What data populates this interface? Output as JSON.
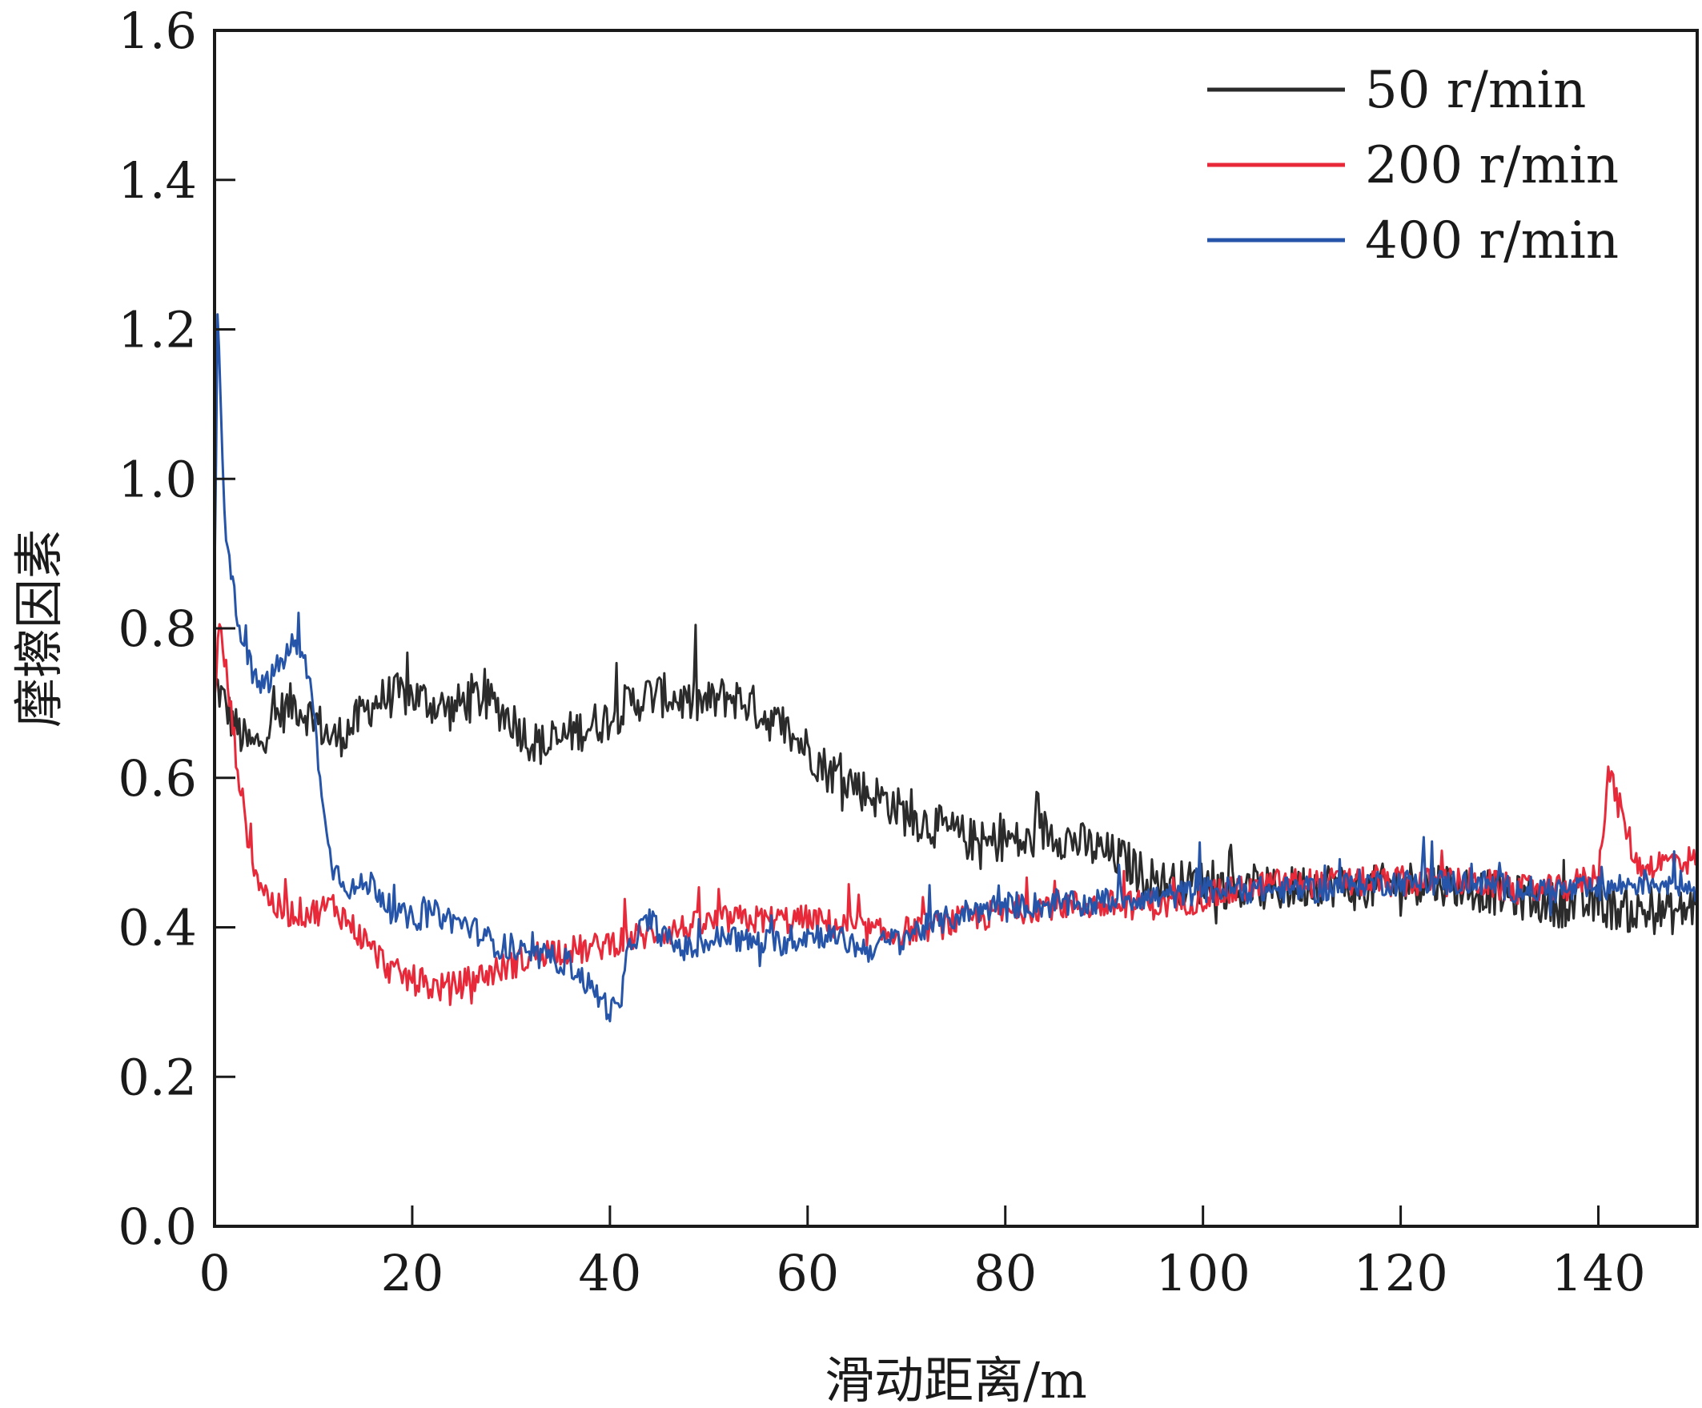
{
  "chart_data": {
    "type": "line",
    "title": "",
    "xlabel": "滑动距离/m",
    "ylabel": "摩擦因素",
    "xlim": [
      0,
      150
    ],
    "ylim": [
      0,
      1.6
    ],
    "xticks": [
      0,
      20,
      40,
      60,
      80,
      100,
      120,
      140
    ],
    "xtick_labels": [
      "0",
      "20",
      "40",
      "60",
      "80",
      "100",
      "120",
      "140"
    ],
    "yticks": [
      0,
      0.2,
      0.4,
      0.6,
      0.8,
      1.0,
      1.2,
      1.4,
      1.6
    ],
    "ytick_labels": [
      "0.0",
      "0.2",
      "0.4",
      "0.6",
      "0.8",
      "1.0",
      "1.2",
      "1.4",
      "1.6"
    ],
    "grid": false,
    "legend_position": "top-right",
    "series": [
      {
        "name": "50 r/min",
        "color": "#2b2b2b",
        "x": [
          0,
          1,
          2,
          3,
          4,
          5,
          6,
          7,
          8,
          10,
          12,
          14,
          16,
          18,
          20,
          22,
          24,
          26,
          28,
          30,
          32,
          34,
          36,
          38,
          40,
          42,
          44,
          46,
          48,
          50,
          52,
          54,
          56,
          58,
          60,
          62,
          64,
          66,
          68,
          70,
          72,
          74,
          76,
          78,
          80,
          82,
          84,
          86,
          88,
          90,
          92,
          94,
          96,
          98,
          100,
          104,
          108,
          112,
          116,
          120,
          124,
          128,
          132,
          136,
          140,
          144,
          148,
          150
        ],
        "y": [
          0.73,
          0.7,
          0.67,
          0.65,
          0.64,
          0.66,
          0.68,
          0.69,
          0.7,
          0.68,
          0.65,
          0.67,
          0.7,
          0.71,
          0.71,
          0.7,
          0.69,
          0.71,
          0.7,
          0.68,
          0.65,
          0.64,
          0.66,
          0.67,
          0.68,
          0.7,
          0.71,
          0.71,
          0.7,
          0.7,
          0.71,
          0.7,
          0.68,
          0.66,
          0.64,
          0.61,
          0.6,
          0.58,
          0.57,
          0.55,
          0.54,
          0.53,
          0.52,
          0.51,
          0.52,
          0.51,
          0.53,
          0.52,
          0.51,
          0.5,
          0.49,
          0.47,
          0.46,
          0.46,
          0.46,
          0.45,
          0.45,
          0.46,
          0.45,
          0.46,
          0.46,
          0.45,
          0.44,
          0.43,
          0.43,
          0.42,
          0.42,
          0.43
        ]
      },
      {
        "name": "200 r/min",
        "color": "#e8293a",
        "x": [
          0,
          0.5,
          1,
          2,
          3,
          4,
          5,
          6,
          7,
          8,
          10,
          12,
          14,
          16,
          18,
          20,
          22,
          24,
          26,
          28,
          30,
          32,
          34,
          36,
          38,
          40,
          44,
          48,
          52,
          56,
          60,
          64,
          68,
          72,
          76,
          80,
          84,
          88,
          92,
          96,
          100,
          104,
          108,
          112,
          116,
          120,
          124,
          128,
          132,
          136,
          140,
          141,
          144,
          148,
          150
        ],
        "y": [
          0.72,
          0.8,
          0.76,
          0.65,
          0.55,
          0.48,
          0.45,
          0.43,
          0.42,
          0.42,
          0.42,
          0.43,
          0.4,
          0.37,
          0.34,
          0.33,
          0.32,
          0.32,
          0.33,
          0.34,
          0.35,
          0.36,
          0.37,
          0.37,
          0.37,
          0.38,
          0.39,
          0.4,
          0.41,
          0.41,
          0.41,
          0.4,
          0.39,
          0.4,
          0.41,
          0.42,
          0.43,
          0.43,
          0.43,
          0.43,
          0.44,
          0.45,
          0.46,
          0.46,
          0.46,
          0.46,
          0.46,
          0.46,
          0.45,
          0.45,
          0.47,
          0.61,
          0.48,
          0.49,
          0.49
        ]
      },
      {
        "name": "400 r/min",
        "color": "#2554a8",
        "x": [
          0,
          0.3,
          0.6,
          1,
          1.5,
          2,
          3,
          4,
          5,
          6,
          7,
          8,
          9,
          10,
          11,
          12,
          14,
          16,
          18,
          20,
          22,
          24,
          26,
          28,
          30,
          32,
          34,
          36,
          38,
          40,
          41,
          42,
          44,
          46,
          48,
          50,
          52,
          54,
          56,
          58,
          60,
          62,
          64,
          66,
          68,
          70,
          72,
          76,
          80,
          84,
          88,
          92,
          96,
          100,
          104,
          108,
          112,
          116,
          120,
          124,
          128,
          132,
          136,
          140,
          144,
          148,
          150
        ],
        "y": [
          0.85,
          1.23,
          1.1,
          0.95,
          0.9,
          0.84,
          0.78,
          0.73,
          0.72,
          0.74,
          0.76,
          0.78,
          0.76,
          0.7,
          0.55,
          0.48,
          0.45,
          0.46,
          0.42,
          0.41,
          0.42,
          0.41,
          0.4,
          0.38,
          0.37,
          0.36,
          0.36,
          0.35,
          0.32,
          0.29,
          0.29,
          0.38,
          0.41,
          0.38,
          0.37,
          0.38,
          0.39,
          0.38,
          0.38,
          0.38,
          0.39,
          0.39,
          0.38,
          0.37,
          0.38,
          0.39,
          0.4,
          0.42,
          0.43,
          0.43,
          0.43,
          0.44,
          0.44,
          0.45,
          0.45,
          0.45,
          0.45,
          0.46,
          0.46,
          0.46,
          0.46,
          0.45,
          0.45,
          0.45,
          0.46,
          0.46,
          0.45
        ]
      }
    ]
  }
}
